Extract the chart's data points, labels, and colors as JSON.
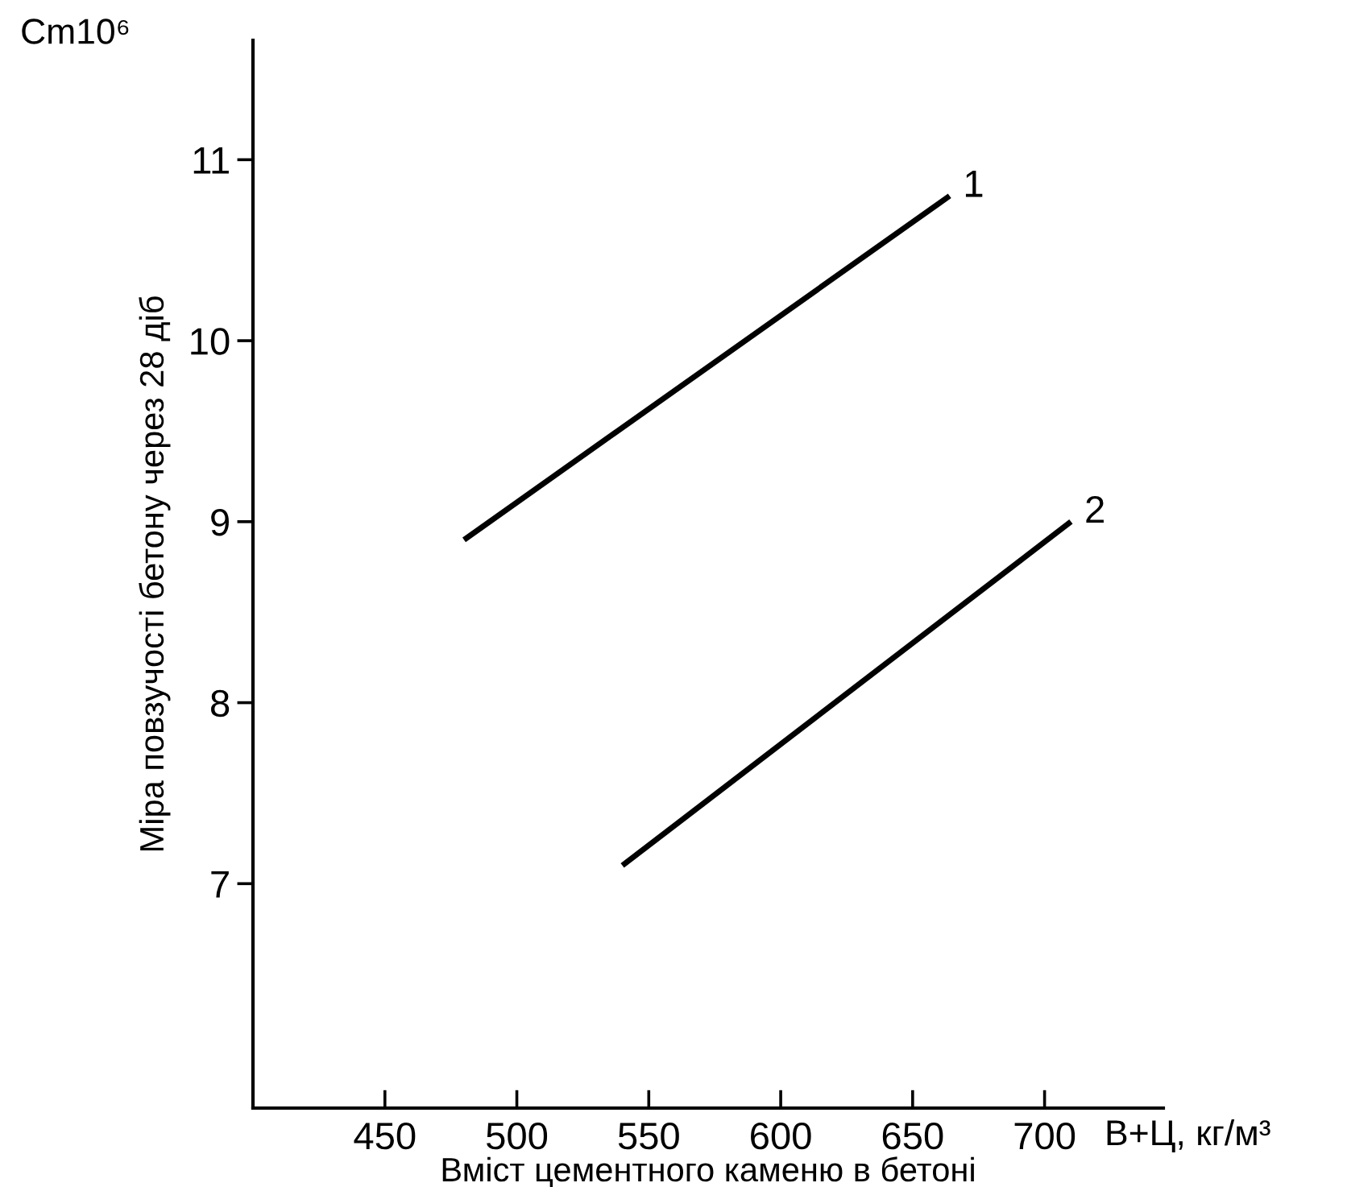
{
  "chart_data": {
    "type": "line",
    "xlabel": "Вміст цементного каменю в бетоні",
    "ylabel": "Міра повзучості бетону через 28 діб",
    "annotations": [
      "Cm10⁶",
      "В+Ц, кг/м³"
    ],
    "xlim": [
      400,
      745
    ],
    "xticks": [
      450,
      500,
      550,
      600,
      650,
      700
    ],
    "ylim": [
      5.76,
      11.66
    ],
    "yticks": [
      7,
      8,
      9,
      10,
      11
    ],
    "grid": false,
    "legend": false,
    "marker": "none",
    "line_style": "solid",
    "series": [
      {
        "name": "1",
        "color": "#000000",
        "x": [
          480,
          664
        ],
        "values": [
          8.9,
          10.8
        ]
      },
      {
        "name": "2",
        "color": "#000000",
        "x": [
          540,
          710
        ],
        "values": [
          7.1,
          9.0
        ]
      }
    ]
  }
}
